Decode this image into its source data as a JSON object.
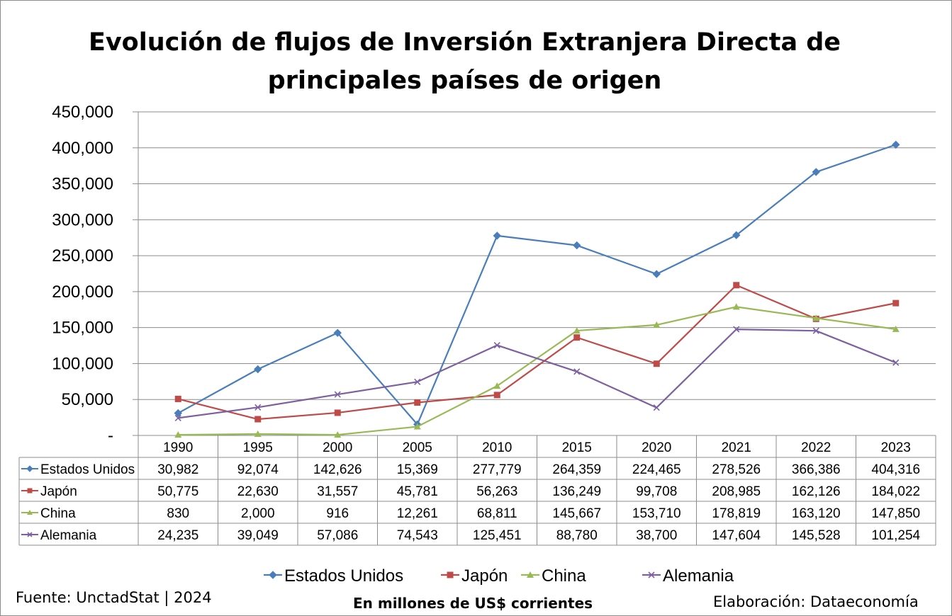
{
  "chart_data": {
    "type": "line",
    "title_line1": "Evolución de flujos de Inversión Extranjera Directa de",
    "title_line2": "principales países de origen",
    "categories": [
      "1990",
      "1995",
      "2000",
      "2005",
      "2010",
      "2015",
      "2020",
      "2021",
      "2022",
      "2023"
    ],
    "ylim": [
      0,
      450000
    ],
    "yticks": [
      0,
      50000,
      100000,
      150000,
      200000,
      250000,
      300000,
      350000,
      400000,
      450000
    ],
    "ytick_labels": [
      "-",
      "50,000",
      "100,000",
      "150,000",
      "200,000",
      "250,000",
      "300,000",
      "350,000",
      "400,000",
      "450,000"
    ],
    "grid": true,
    "legend_position": "bottom",
    "series": [
      {
        "name": "Estados Unidos",
        "color": "#4a7ebb",
        "marker": "diamond",
        "values": [
          30982,
          92074,
          142626,
          15369,
          277779,
          264359,
          224465,
          278526,
          366386,
          404316
        ],
        "labels": [
          "30,982",
          "92,074",
          "142,626",
          "15,369",
          "277,779",
          "264,359",
          "224,465",
          "278,526",
          "366,386",
          "404,316"
        ]
      },
      {
        "name": "Japón",
        "color": "#be4b48",
        "marker": "square",
        "values": [
          50775,
          22630,
          31557,
          45781,
          56263,
          136249,
          99708,
          208985,
          162126,
          184022
        ],
        "labels": [
          "50,775",
          "22,630",
          "31,557",
          "45,781",
          "56,263",
          "136,249",
          "99,708",
          "208,985",
          "162,126",
          "184,022"
        ]
      },
      {
        "name": "China",
        "color": "#98b954",
        "marker": "triangle",
        "values": [
          830,
          2000,
          916,
          12261,
          68811,
          145667,
          153710,
          178819,
          163120,
          147850
        ],
        "labels": [
          "830",
          "2,000",
          "916",
          "12,261",
          "68,811",
          "145,667",
          "153,710",
          "178,819",
          "163,120",
          "147,850"
        ]
      },
      {
        "name": "Alemania",
        "color": "#7d60a0",
        "marker": "x",
        "values": [
          24235,
          39049,
          57086,
          74543,
          125451,
          88780,
          38700,
          147604,
          145528,
          101254
        ],
        "labels": [
          "24,235",
          "39,049",
          "57,086",
          "74,543",
          "125,451",
          "88,780",
          "38,700",
          "147,604",
          "145,528",
          "101,254"
        ]
      }
    ]
  },
  "footer": {
    "source": "Fuente: UnctadStat | 2024",
    "units": "En millones de US$ corrientes",
    "credit": "Elaboración: Dataeconomía"
  }
}
